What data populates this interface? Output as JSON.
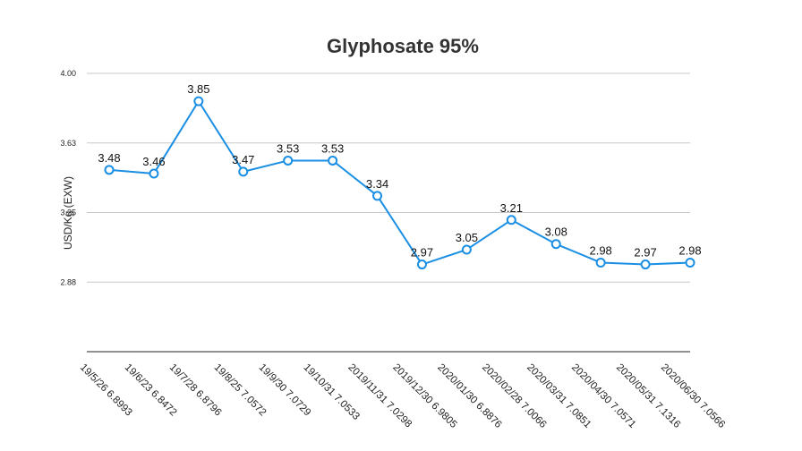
{
  "chart_data": {
    "type": "line",
    "title": "Glyphosate 95%",
    "ylabel": "USD/Kg   (EXW)",
    "xlabel": "",
    "ylim": [
      2.5,
      4.0
    ],
    "yticks": [
      "2.88",
      "3.25",
      "3.63",
      "4.00"
    ],
    "ytick_values": [
      2.875,
      3.25,
      3.625,
      4.0
    ],
    "grid": true,
    "legend": "none",
    "categories": [
      "19/5/26 6.8993",
      "19/6/23 6.8472",
      "19/7/28 6.8796",
      "19/8/25 7.0572",
      "19/9/30 7.0729",
      "19/10/31 7.0533",
      "2019/11/31 7.0298",
      "2019/12/30 6.9805",
      "2020/01/30 6.8876",
      "2020/02/28 7.0066",
      "2020/03/31 7.0851",
      "2020/04/30 7.0571",
      "2020/05/31 7.1316",
      "2020/06/30 7.0566"
    ],
    "series": [
      {
        "values": [
          3.48,
          3.46,
          3.85,
          3.47,
          3.53,
          3.53,
          3.34,
          2.97,
          3.05,
          3.21,
          3.08,
          2.98,
          2.97,
          2.98
        ],
        "labels": [
          "3.48",
          "3.46",
          "3.85",
          "3.47",
          "3.53",
          "3.53",
          "3.34",
          "2.97",
          "3.05",
          "3.21",
          "3.08",
          "2.98",
          "2.97",
          "2.98"
        ],
        "color": "#1a8fe3"
      }
    ]
  }
}
